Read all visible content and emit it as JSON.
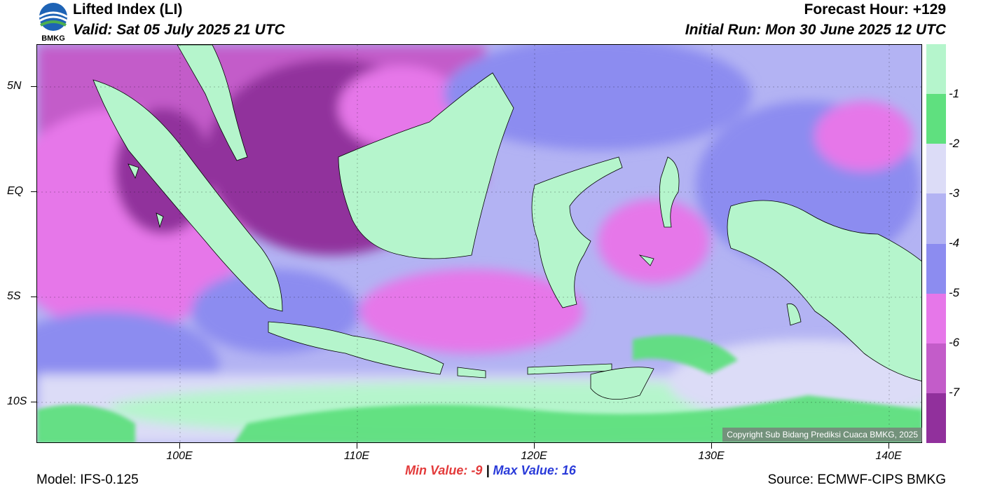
{
  "header": {
    "title": "Lifted Index (LI)",
    "valid": "Valid: Sat 05 July 2025 21 UTC",
    "forecast_hour": "Forecast Hour: +129",
    "initial_run": "Initial Run: Mon 30 June 2025 12 UTC",
    "logo_text": "BMKG"
  },
  "axes": {
    "lat_labels": [
      "5N",
      "EQ",
      "5S",
      "10S"
    ],
    "lon_labels": [
      "100E",
      "110E",
      "120E",
      "130E",
      "140E"
    ]
  },
  "legend": {
    "colors": [
      "#b5f5cc",
      "#5fe07f",
      "#dcdcf7",
      "#b3b3f3",
      "#8c8cf0",
      "#e677e9",
      "#c35cc9",
      "#91309c"
    ],
    "labels": [
      "-1",
      "-2",
      "-3",
      "-4",
      "-5",
      "-6",
      "-7"
    ]
  },
  "stats": {
    "min_label": "Min Value:",
    "min_value": "-9",
    "separator": "|",
    "max_label": "Max Value:",
    "max_value": "16"
  },
  "footer": {
    "model": "Model: IFS-0.125",
    "source": "Source: ECMWF-CIPS BMKG",
    "copyright": "Copyright Sub Bidang Prediksi Cuaca BMKG, 2025"
  },
  "colors": {
    "ocean_base": "#b3b3f3",
    "deep_purple": "#91309c",
    "magenta": "#e677e9",
    "land_green": "#b5f5cc",
    "bright_green": "#5fe07f"
  }
}
